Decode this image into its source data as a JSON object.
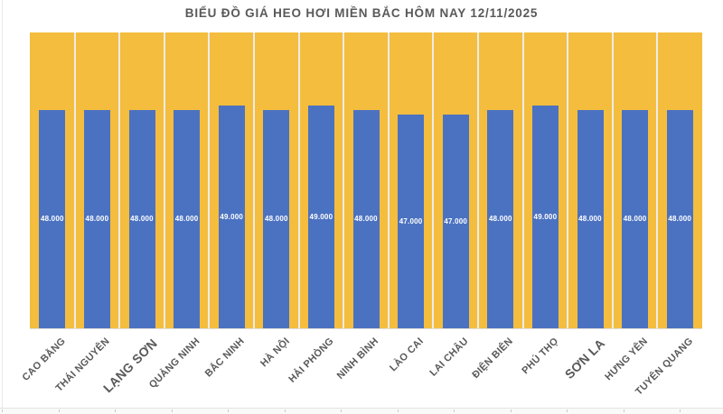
{
  "chart_data": {
    "type": "bar",
    "title": "BIỂU ĐỒ GIÁ HEO HƠI MIỀN BẮC HÔM NAY 12/11/2025",
    "categories": [
      "CAO BẰNG",
      "THÁI NGUYÊN",
      "LẠNG SƠN",
      "QUẢNG NINH",
      "BẮC NINH",
      "HÀ NỘI",
      "HẢI PHÒNG",
      "NINH BÌNH",
      "LÀO CAI",
      "LAI CHÂU",
      "ĐIỆN BIÊN",
      "PHÚ THỌ",
      "SƠN LA",
      "HƯNG YÊN",
      "TUYÊN QUANG"
    ],
    "values": [
      48000,
      48000,
      48000,
      48000,
      49000,
      48000,
      49000,
      48000,
      47000,
      47000,
      48000,
      49000,
      48000,
      48000,
      48000
    ],
    "value_labels": [
      "48.000",
      "48.000",
      "48.000",
      "48.000",
      "49.000",
      "48.000",
      "49.000",
      "48.000",
      "47.000",
      "47.000",
      "48.000",
      "49.000",
      "48.000",
      "48.000",
      "48.000"
    ],
    "emphasized_categories": [
      "LẠNG SƠN",
      "SƠN LA"
    ],
    "xlabel": "",
    "ylabel": "",
    "ylim": [
      0,
      65000
    ],
    "grid": false,
    "legend": false,
    "value_label_position": "inside-center",
    "x_tick_rotation_deg": 45,
    "colors": {
      "bar": "#4B72C1",
      "plot_background": "#F4BD3E",
      "column_separator": "#EDECE8",
      "value_label_text": "#FFFFFF",
      "axis_label_text": "#595959",
      "title_text": "#595959"
    }
  }
}
